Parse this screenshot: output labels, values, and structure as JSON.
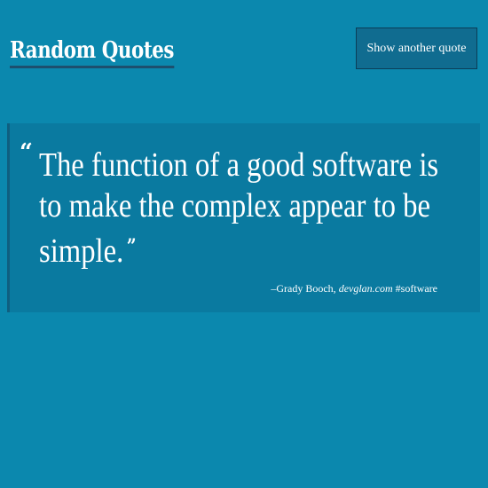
{
  "header": {
    "title": "Random Quotes",
    "next_button_label": "Show another quote"
  },
  "quote": {
    "open_mark": "“",
    "text": "The function of a good software is to make the complex appear to be simple.",
    "close_mark": "”",
    "dash": "–",
    "author": "Grady Booch,",
    "source": "devglan.com",
    "tag": "#software"
  },
  "colors": {
    "background": "#0b88ae",
    "quote_box": "#0a7aa0",
    "button": "#106c90",
    "title_underline": "#1d4f6e"
  }
}
